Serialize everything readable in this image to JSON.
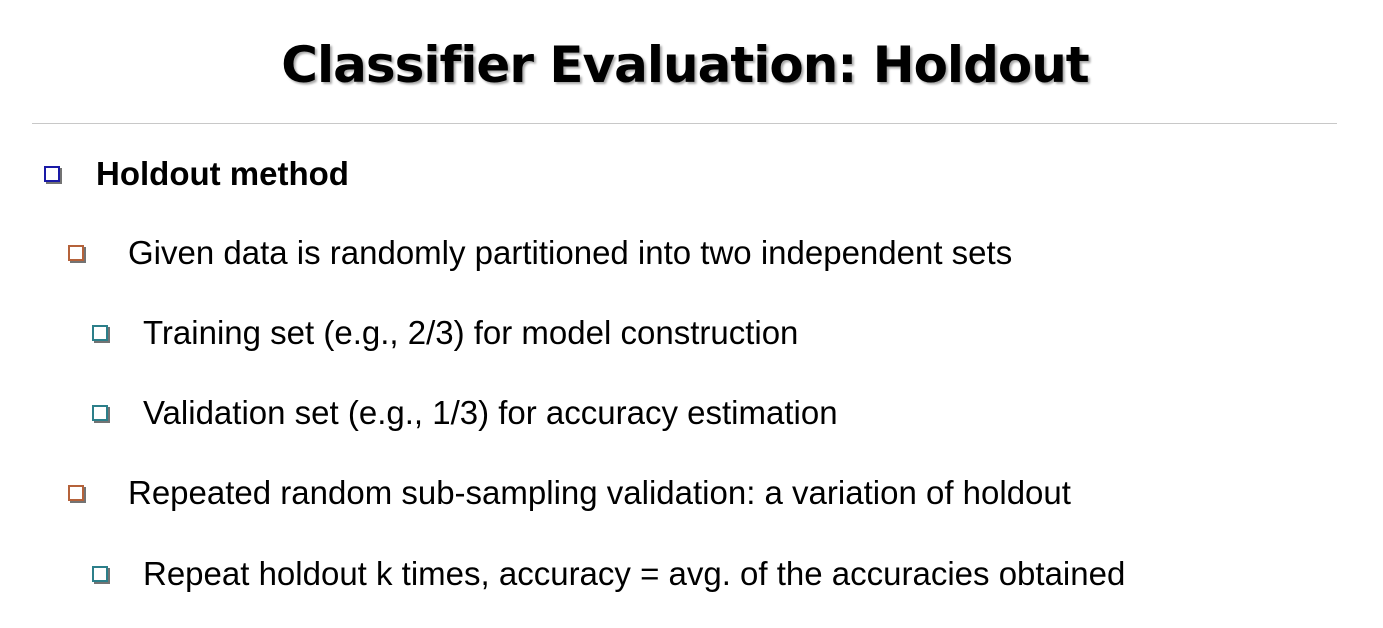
{
  "slide": {
    "title": "Classifier Evaluation: Holdout"
  },
  "bullets": {
    "b1": "Holdout method",
    "b2": "Given data is randomly partitioned into two independent sets",
    "b3": "Training set (e.g., 2/3) for model construction",
    "b4": "Validation set (e.g., 1/3) for accuracy estimation",
    "b5": "Repeated random sub-sampling validation: a variation of holdout",
    "b6": "Repeat holdout k times, accuracy = avg. of the accuracies obtained"
  },
  "colors": {
    "level1_bullet": "#1a1aa6",
    "level2_bullet": "#b5623a",
    "level3_bullet": "#2c7f8a"
  },
  "icons": {
    "bullet_marker": "hollow-square-bullet-icon"
  }
}
